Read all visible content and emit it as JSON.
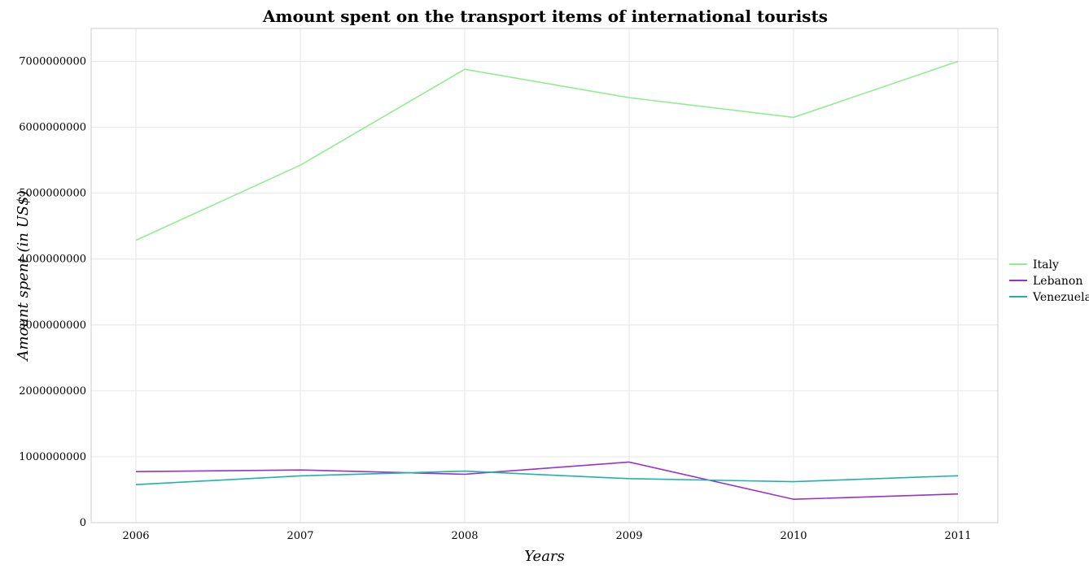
{
  "chart_data": {
    "type": "line",
    "title": "Amount spent on the transport items of international tourists",
    "xlabel": "Years",
    "ylabel": "Amount spent (in US$)",
    "categories": [
      "2006",
      "2007",
      "2008",
      "2009",
      "2010",
      "2011"
    ],
    "ylim": [
      0,
      7500000000
    ],
    "yticks": [
      0,
      1000000000,
      2000000000,
      3000000000,
      4000000000,
      5000000000,
      6000000000,
      7000000000
    ],
    "ytick_labels": [
      "0",
      "1000000000",
      "2000000000",
      "3000000000",
      "4000000000",
      "5000000000",
      "6000000000",
      "7000000000"
    ],
    "grid": true,
    "legend_position": "right",
    "series": [
      {
        "name": "Italy",
        "color": "#90ee90",
        "values": [
          4285000000,
          5425000000,
          6880000000,
          6450000000,
          6150000000,
          7000000000
        ]
      },
      {
        "name": "Lebanon",
        "color": "#9932cc",
        "values": [
          775000000,
          800000000,
          735000000,
          920000000,
          355000000,
          435000000
        ]
      },
      {
        "name": "Venezuela",
        "color": "#20b2aa",
        "values": [
          578000000,
          710000000,
          782000000,
          668000000,
          622000000,
          712000000
        ]
      }
    ]
  }
}
